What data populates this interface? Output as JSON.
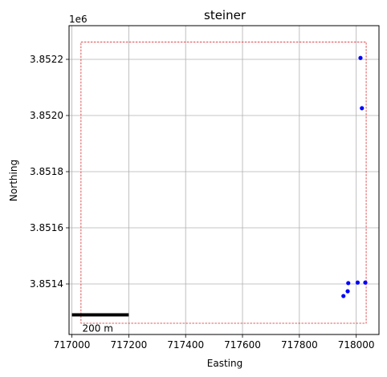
{
  "chart_data": {
    "type": "scatter",
    "title": "steiner",
    "xlabel": "Easting",
    "ylabel": "Northing",
    "y_offset_label": "1e6",
    "xlim": [
      716990,
      718080
    ],
    "ylim": [
      3851220,
      3852320
    ],
    "x_ticks": [
      717000,
      717200,
      717400,
      717600,
      717800,
      718000
    ],
    "x_tick_labels": [
      "717000",
      "717200",
      "717400",
      "717600",
      "717800",
      "718000"
    ],
    "y_ticks": [
      3851400,
      3851600,
      3851800,
      3852000,
      3852200
    ],
    "y_tick_labels": [
      "3.8514",
      "3.8516",
      "3.8518",
      "3.8520",
      "3.8522"
    ],
    "grid": true,
    "points": {
      "color": "#0000ff",
      "x": [
        718015,
        718020,
        717955,
        717970,
        717972,
        718005,
        718032
      ],
      "y": [
        3852205,
        3852026,
        3851357,
        3851374,
        3851403,
        3851405,
        3851405
      ]
    },
    "bounding_box": {
      "color": "#d62728",
      "x": [
        717032,
        718035
      ],
      "y": [
        3851260,
        3852262
      ]
    },
    "scale_bar": {
      "label": "200 m",
      "x_start": 717000,
      "x_end": 717200,
      "y": 3851290,
      "color": "#000000"
    }
  }
}
